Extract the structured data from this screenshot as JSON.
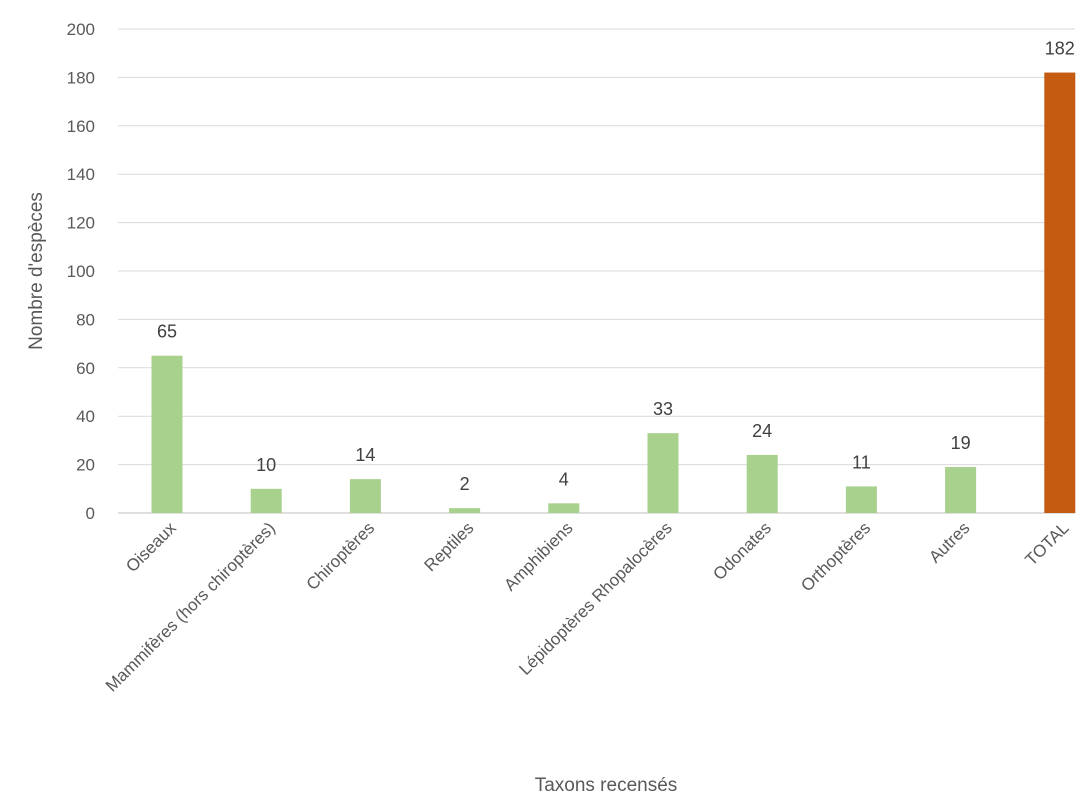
{
  "chart_data": {
    "type": "bar",
    "title": "",
    "xlabel": "Taxons recensés",
    "ylabel": "Nombre d'espèces",
    "ylim": [
      0,
      200
    ],
    "yticks": [
      0,
      20,
      40,
      60,
      80,
      100,
      120,
      140,
      160,
      180,
      200
    ],
    "grid": true,
    "legend": "none",
    "categories": [
      "Oiseaux",
      "Mammifères (hors chiroptères)",
      "Chiroptères",
      "Reptiles",
      "Amphibiens",
      "Lépidoptères Rhopalocères",
      "Odonates",
      "Orthoptères",
      "Autres",
      "TOTAL"
    ],
    "values": [
      65,
      10,
      14,
      2,
      4,
      33,
      24,
      11,
      19,
      182
    ],
    "data_labels": [
      "65",
      "10",
      "14",
      "2",
      "4",
      "33",
      "24",
      "11",
      "19",
      "182"
    ],
    "colors": {
      "default_bar": "#a9d18e",
      "total_bar": "#c55a11"
    },
    "highlighted_category": "TOTAL"
  }
}
